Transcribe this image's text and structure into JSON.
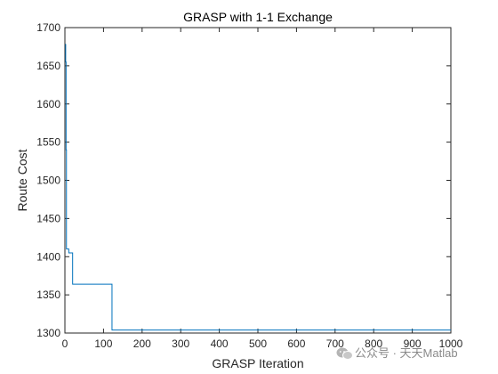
{
  "chart_data": {
    "type": "line",
    "title": "GRASP with 1-1 Exchange",
    "xlabel": "GRASP Iteration",
    "ylabel": "Route Cost",
    "xlim": [
      0,
      1000
    ],
    "ylim": [
      1300,
      1700
    ],
    "xticks": [
      0,
      100,
      200,
      300,
      400,
      500,
      600,
      700,
      800,
      900,
      1000
    ],
    "yticks": [
      1300,
      1350,
      1400,
      1450,
      1500,
      1550,
      1600,
      1650,
      1700
    ],
    "grid": false,
    "legend": "none",
    "series": [
      {
        "color": "#0072BD",
        "step": true,
        "x": [
          1,
          2,
          3,
          4,
          10,
          20,
          122,
          1000
        ],
        "y": [
          1678,
          1655,
          1540,
          1410,
          1405,
          1364,
          1304,
          1304
        ]
      }
    ]
  },
  "watermark": {
    "icon": "wechat-icon",
    "text": "公众号 · 天天Matlab"
  }
}
